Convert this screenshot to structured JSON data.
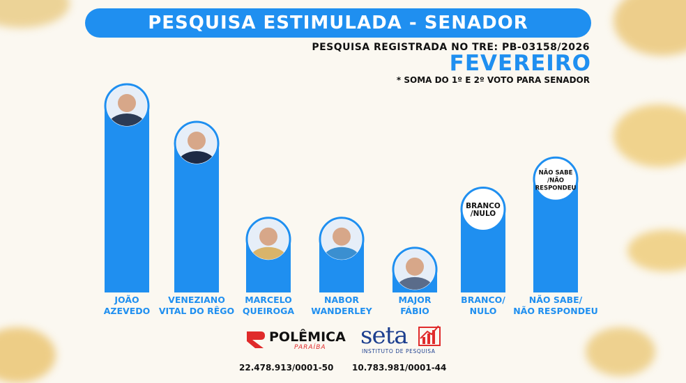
{
  "header": {
    "title": "PESQUISA ESTIMULADA - SENADOR",
    "registro": "PESQUISA REGISTRADA NO TRE: PB-03158/2026",
    "month": "FEVEREIRO",
    "note": "* SOMA DO 1º E 2º VOTO PARA SENADOR"
  },
  "chart_data": {
    "type": "bar",
    "categories": [
      "JOÃO AZEVEDO",
      "VENEZIANO VITAL DO RÊGO",
      "MARCELO QUEIROGA",
      "NABOR WANDERLEY",
      "MAJOR FÁBIO",
      "BRANCO/ NULO",
      "NÃO SABE/ NÃO RESPONDEU"
    ],
    "labels": [
      [
        "JOÃO",
        "AZEVEDO"
      ],
      [
        "VENEZIANO",
        "VITAL DO RÊGO"
      ],
      [
        "MARCELO",
        "QUEIROGA"
      ],
      [
        "NABOR",
        "WANDERLEY"
      ],
      [
        "MAJOR",
        "FÁBIO"
      ],
      [
        "BRANCO/",
        "NULO"
      ],
      [
        "NÃO SABE/",
        "NÃO RESPONDEU"
      ]
    ],
    "values": [
      100,
      80,
      29,
      29,
      13,
      45,
      61
    ],
    "ylim": [
      0,
      100
    ],
    "bar_color": "#1f8ff0",
    "circle_text": [
      null,
      null,
      null,
      null,
      null,
      [
        "BRANCO",
        "/NULO"
      ],
      [
        "NÃO SABE",
        "/NÃO",
        "RESPONDEU"
      ]
    ]
  },
  "footer": {
    "polemica_logo": "POLÊMICA",
    "polemica_sub": "PARAÍBA",
    "seta_logo": "seta",
    "seta_sub": "INSTITUTO DE PESQUISA",
    "cnpj_polemica": "22.478.913/0001-50",
    "cnpj_seta": "10.783.981/0001-44"
  },
  "colors": {
    "accent": "#1f8ff0",
    "logo_red": "#e02b2b",
    "background": "#fbf8f1"
  }
}
